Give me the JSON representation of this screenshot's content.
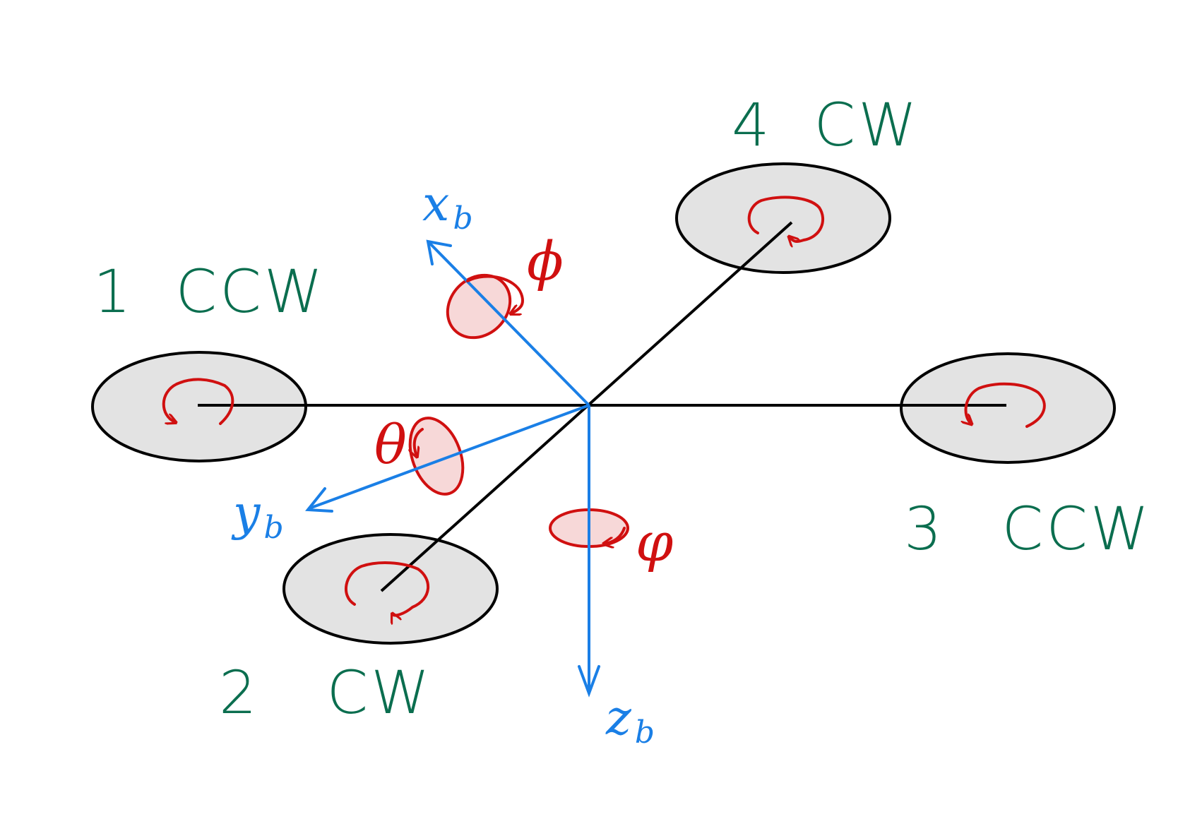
{
  "colors": {
    "frame": "#000000",
    "rotor_fill": "#e3e3e3",
    "motor_text": "#0b6e4f",
    "axis": "#1a7fe6",
    "rotation": "#d01010",
    "rotation_fill": "#f7d8d8"
  },
  "motors": [
    {
      "number": "1",
      "direction": "CCW"
    },
    {
      "number": "2",
      "direction": "CW"
    },
    {
      "number": "3",
      "direction": "CCW"
    },
    {
      "number": "4",
      "direction": "CW"
    }
  ],
  "axes": {
    "x": {
      "name": "x",
      "subscript": "b"
    },
    "y": {
      "name": "y",
      "subscript": "b"
    },
    "z": {
      "name": "z",
      "subscript": "b"
    }
  },
  "angles": {
    "roll": "ϕ",
    "pitch": "θ",
    "yaw": "φ"
  }
}
